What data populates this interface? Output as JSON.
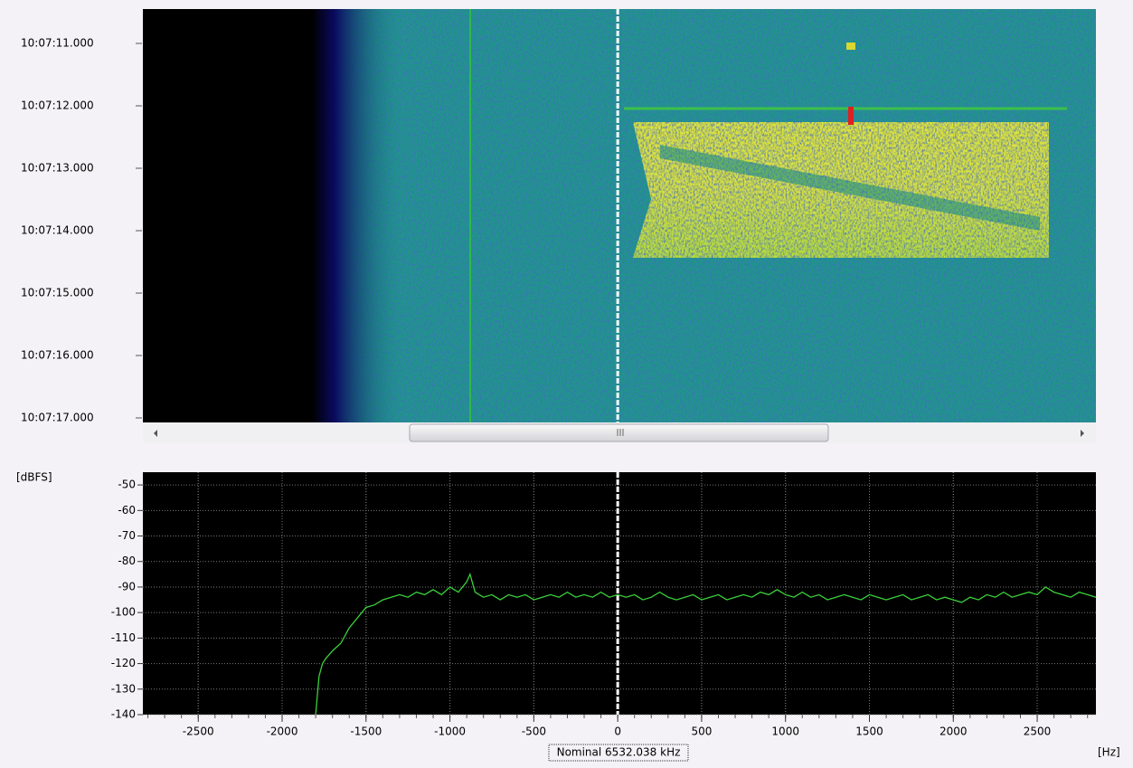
{
  "waterfall": {
    "time_labels": [
      "10:07:11.000",
      "10:07:12.000",
      "10:07:13.000",
      "10:07:14.000",
      "10:07:15.000",
      "10:07:16.000",
      "10:07:17.000"
    ]
  },
  "chart_data": {
    "type": "line",
    "y_unit": "[dBFS]",
    "x_unit": "[Hz]",
    "center_label": "Nominal 6532.038 kHz",
    "xlim": [
      -2830,
      2850
    ],
    "ylim": [
      -140,
      -45
    ],
    "xticks": [
      -2500,
      -2000,
      -1500,
      -1000,
      -500,
      0,
      500,
      1000,
      1500,
      2000,
      2500
    ],
    "yticks": [
      -50,
      -60,
      -70,
      -80,
      -90,
      -100,
      -110,
      -120,
      -130,
      -140
    ],
    "grid": true,
    "series": [
      {
        "color": "#3ad13a",
        "x": [
          -1800,
          -1780,
          -1760,
          -1740,
          -1700,
          -1650,
          -1600,
          -1550,
          -1500,
          -1450,
          -1400,
          -1350,
          -1300,
          -1250,
          -1200,
          -1150,
          -1100,
          -1050,
          -1000,
          -950,
          -900,
          -880,
          -850,
          -800,
          -750,
          -700,
          -650,
          -600,
          -550,
          -500,
          -450,
          -400,
          -350,
          -300,
          -250,
          -200,
          -150,
          -100,
          -50,
          0,
          50,
          100,
          150,
          200,
          250,
          300,
          350,
          400,
          450,
          500,
          550,
          600,
          650,
          700,
          750,
          800,
          850,
          900,
          950,
          1000,
          1050,
          1100,
          1150,
          1200,
          1250,
          1300,
          1350,
          1400,
          1450,
          1500,
          1550,
          1600,
          1650,
          1700,
          1750,
          1800,
          1850,
          1900,
          1950,
          2000,
          2050,
          2100,
          2150,
          2200,
          2250,
          2300,
          2350,
          2400,
          2450,
          2500,
          2550,
          2600,
          2650,
          2700,
          2750,
          2800,
          2850
        ],
        "values": [
          -140,
          -125,
          -120,
          -118,
          -115,
          -112,
          -106,
          -102,
          -98,
          -97,
          -95,
          -94,
          -93,
          -94,
          -92,
          -93,
          -91,
          -93,
          -90,
          -92,
          -88,
          -85,
          -92,
          -94,
          -93,
          -95,
          -93,
          -94,
          -93,
          -95,
          -94,
          -93,
          -94,
          -92,
          -94,
          -93,
          -94,
          -92,
          -94,
          -93,
          -94,
          -93,
          -95,
          -94,
          -92,
          -94,
          -95,
          -94,
          -93,
          -95,
          -94,
          -93,
          -95,
          -94,
          -93,
          -94,
          -92,
          -93,
          -91,
          -93,
          -94,
          -92,
          -94,
          -93,
          -95,
          -94,
          -93,
          -94,
          -95,
          -93,
          -94,
          -95,
          -94,
          -93,
          -95,
          -94,
          -93,
          -95,
          -94,
          -95,
          -96,
          -94,
          -95,
          -93,
          -94,
          -92,
          -94,
          -93,
          -92,
          -93,
          -90,
          -92,
          -93,
          -94,
          -92,
          -93,
          -94
        ]
      }
    ]
  }
}
